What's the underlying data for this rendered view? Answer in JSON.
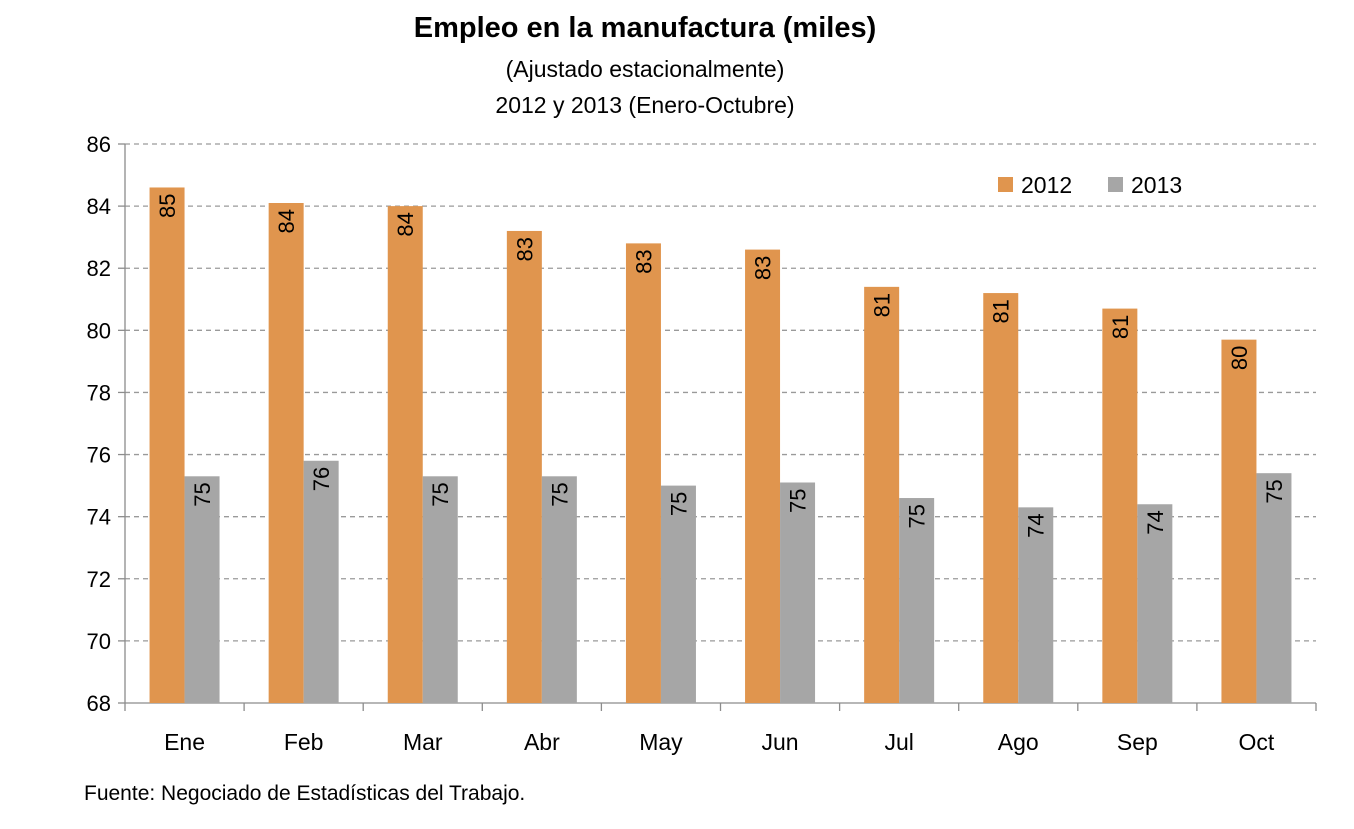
{
  "chart_data": {
    "type": "bar",
    "title": "Empleo en la manufactura (miles)",
    "subtitle_1": "(Ajustado estacionalmente)",
    "subtitle_2": "2012 y 2013 (Enero-Octubre)",
    "source": "Fuente: Negociado de Estadísticas del Trabajo.",
    "categories": [
      "Ene",
      "Feb",
      "Mar",
      "Abr",
      "May",
      "Jun",
      "Jul",
      "Ago",
      "Sep",
      "Oct"
    ],
    "series": [
      {
        "name": "2012",
        "color": "#E0954E",
        "values": [
          84.6,
          84.1,
          84.0,
          83.2,
          82.8,
          82.6,
          81.4,
          81.2,
          80.7,
          79.7
        ],
        "labels": [
          "85",
          "84",
          "84",
          "83",
          "83",
          "83",
          "81",
          "81",
          "81",
          "80"
        ]
      },
      {
        "name": "2013",
        "color": "#A6A6A6",
        "values": [
          75.3,
          75.8,
          75.3,
          75.3,
          75.0,
          75.1,
          74.6,
          74.3,
          74.4,
          75.4
        ],
        "labels": [
          "75",
          "76",
          "75",
          "75",
          "75",
          "75",
          "75",
          "74",
          "74",
          "75"
        ]
      }
    ],
    "ylim": [
      68,
      86
    ],
    "yticks": [
      "68",
      "70",
      "72",
      "74",
      "76",
      "78",
      "80",
      "82",
      "84",
      "86"
    ],
    "grid": true,
    "legend_position": "top-right"
  }
}
